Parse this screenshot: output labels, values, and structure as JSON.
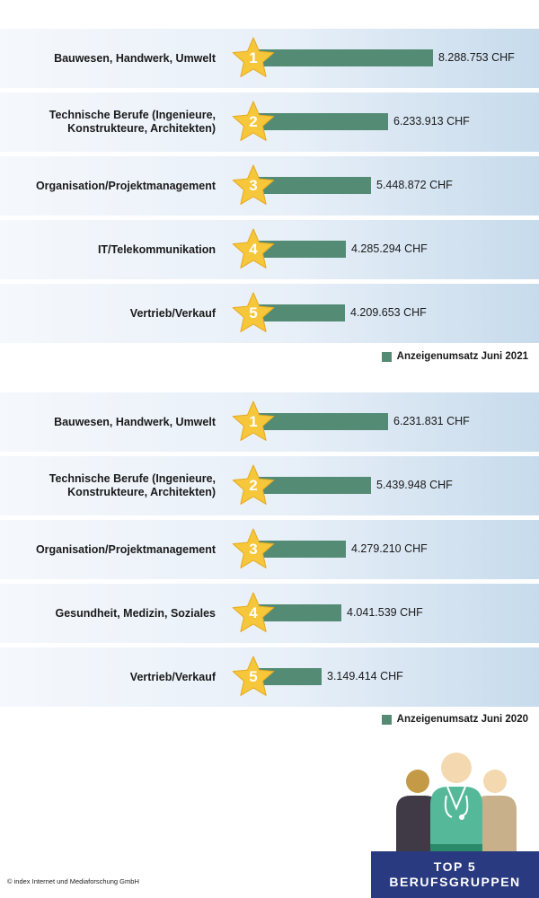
{
  "chart_data": [
    {
      "type": "bar",
      "orientation": "horizontal",
      "categories": [
        "Bauwesen, Handwerk, Umwelt",
        "Technische Berufe (Ingenieure,\nKonstrukteure, Architekten)",
        "Organisation/Projektmanagement",
        "IT/Telekommunikation",
        "Vertrieb/Verkauf"
      ],
      "ranks": [
        "1",
        "2",
        "3",
        "4",
        "5"
      ],
      "values": [
        8288753,
        6233913,
        5448872,
        4285294,
        4209653
      ],
      "value_labels": [
        "8.288.753 CHF",
        "6.233.913 CHF",
        "5.448.872 CHF",
        "4.285.294 CHF",
        "4.209.653 CHF"
      ],
      "legend": "Anzeigenumsatz Juni 2021",
      "legend_position": "bottom-right",
      "bar_color": "#548b74",
      "grid": false
    },
    {
      "type": "bar",
      "orientation": "horizontal",
      "categories": [
        "Bauwesen, Handwerk, Umwelt",
        "Technische Berufe (Ingenieure,\nKonstrukteure, Architekten)",
        "Organisation/Projektmanagement",
        "Gesundheit, Medizin, Soziales",
        "Vertrieb/Verkauf"
      ],
      "ranks": [
        "1",
        "2",
        "3",
        "4",
        "5"
      ],
      "values": [
        6231831,
        5439948,
        4279210,
        4041539,
        3149414
      ],
      "value_labels": [
        "6.231.831 CHF",
        "5.439.948 CHF",
        "4.279.210 CHF",
        "4.041.539 CHF",
        "3.149.414 CHF"
      ],
      "legend": "Anzeigenumsatz Juni 2020",
      "legend_position": "bottom-right",
      "bar_color": "#548b74",
      "grid": false
    }
  ],
  "copyright": "© index Internet und Mediaforschung GmbH",
  "badge": {
    "line1": "TOP 5",
    "line2": "BERUFSGRUPPEN",
    "background": "#2a3a80"
  },
  "star_color": "#f6c73a"
}
